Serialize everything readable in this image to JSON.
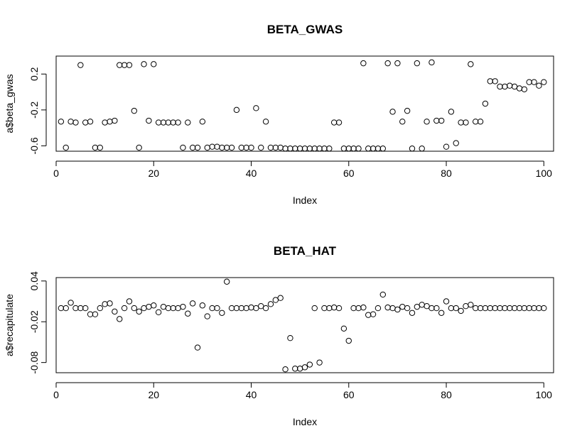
{
  "chart_data": [
    {
      "type": "scatter",
      "title": "BETA_GWAS",
      "xlabel": "Index",
      "ylabel": "a$beta_gwas",
      "xlim": [
        0,
        102
      ],
      "ylim": [
        -0.66,
        0.4
      ],
      "xticks": [
        0,
        20,
        40,
        60,
        80,
        100
      ],
      "yticks": [
        -0.6,
        -0.2,
        0.2
      ],
      "ytick_labels": [
        "-0.6",
        "-0.2",
        "0.2"
      ],
      "grid": false,
      "x": [
        1,
        2,
        3,
        4,
        5,
        6,
        7,
        8,
        9,
        10,
        11,
        12,
        13,
        14,
        15,
        16,
        17,
        18,
        19,
        20,
        21,
        22,
        23,
        24,
        25,
        26,
        27,
        28,
        29,
        30,
        31,
        32,
        33,
        34,
        35,
        36,
        37,
        38,
        39,
        40,
        41,
        42,
        43,
        44,
        45,
        46,
        47,
        48,
        49,
        50,
        51,
        52,
        53,
        54,
        55,
        56,
        57,
        58,
        59,
        60,
        61,
        62,
        63,
        64,
        65,
        66,
        67,
        68,
        69,
        70,
        71,
        72,
        73,
        74,
        75,
        76,
        77,
        78,
        79,
        80,
        81,
        82,
        83,
        84,
        85,
        86,
        87,
        88,
        89,
        90,
        91,
        92,
        93,
        94,
        95,
        96,
        97,
        98,
        99,
        100
      ],
      "y": [
        -0.33,
        -0.62,
        -0.33,
        -0.34,
        0.3,
        -0.34,
        -0.33,
        -0.62,
        -0.62,
        -0.34,
        -0.33,
        -0.32,
        0.3,
        0.3,
        0.3,
        -0.21,
        -0.62,
        0.31,
        -0.32,
        0.31,
        -0.34,
        -0.34,
        -0.34,
        -0.34,
        -0.34,
        -0.62,
        -0.34,
        -0.62,
        -0.62,
        -0.33,
        -0.62,
        -0.61,
        -0.61,
        -0.62,
        -0.62,
        -0.62,
        -0.2,
        -0.62,
        -0.62,
        -0.62,
        -0.18,
        -0.62,
        -0.33,
        -0.62,
        -0.62,
        -0.62,
        -0.63,
        -0.63,
        -0.63,
        -0.63,
        -0.63,
        -0.63,
        -0.63,
        -0.63,
        -0.63,
        -0.63,
        -0.34,
        -0.34,
        -0.63,
        -0.63,
        -0.63,
        -0.63,
        0.32,
        -0.63,
        -0.63,
        -0.63,
        -0.63,
        0.32,
        -0.22,
        0.32,
        -0.33,
        -0.21,
        -0.63,
        0.32,
        -0.63,
        -0.33,
        0.33,
        -0.32,
        -0.32,
        -0.61,
        -0.22,
        -0.57,
        -0.34,
        -0.34,
        0.31,
        -0.33,
        -0.33,
        -0.13,
        0.12,
        0.12,
        0.06,
        0.06,
        0.07,
        0.06,
        0.04,
        0.03,
        0.11,
        0.11,
        0.07,
        0.11
      ]
    },
    {
      "type": "scatter",
      "title": "BETA_HAT",
      "xlabel": "Index",
      "ylabel": "a$recapitulate",
      "xlim": [
        0,
        102
      ],
      "ylim": [
        -0.095,
        0.045
      ],
      "xticks": [
        0,
        20,
        40,
        60,
        80,
        100
      ],
      "yticks": [
        -0.08,
        -0.02,
        0.04
      ],
      "ytick_labels": [
        "-0.08",
        "-0.02",
        "0.04"
      ],
      "grid": false,
      "x": [
        1,
        2,
        3,
        4,
        5,
        6,
        7,
        8,
        9,
        10,
        11,
        12,
        13,
        14,
        15,
        16,
        17,
        18,
        19,
        20,
        21,
        22,
        23,
        24,
        25,
        26,
        27,
        28,
        29,
        30,
        31,
        32,
        33,
        34,
        35,
        36,
        37,
        38,
        39,
        40,
        41,
        42,
        43,
        44,
        45,
        46,
        47,
        48,
        49,
        50,
        51,
        52,
        53,
        54,
        55,
        56,
        57,
        58,
        59,
        60,
        61,
        62,
        63,
        64,
        65,
        66,
        67,
        68,
        69,
        70,
        71,
        72,
        73,
        74,
        75,
        76,
        77,
        78,
        79,
        80,
        81,
        82,
        83,
        84,
        85,
        86,
        87,
        88,
        89,
        90,
        91,
        92,
        93,
        94,
        95,
        96,
        97,
        98,
        99,
        100
      ],
      "y": [
        0,
        0,
        0.008,
        0,
        0,
        0,
        -0.009,
        -0.009,
        0,
        0.006,
        0.007,
        -0.005,
        -0.016,
        0,
        0.01,
        0,
        -0.005,
        0,
        0.002,
        0.004,
        -0.006,
        0.002,
        0,
        0,
        0,
        0.002,
        -0.008,
        0.007,
        -0.058,
        0.004,
        -0.012,
        0,
        0,
        -0.007,
        0.039,
        0,
        0,
        0,
        0,
        0.001,
        0,
        0.003,
        0,
        0.006,
        0.012,
        0.015,
        -0.09,
        -0.044,
        -0.089,
        -0.089,
        -0.087,
        -0.083,
        0,
        -0.08,
        0,
        0,
        0.001,
        0,
        -0.03,
        -0.048,
        0,
        0,
        0.001,
        -0.01,
        -0.009,
        0,
        0.02,
        0.001,
        0,
        -0.002,
        0.002,
        0,
        -0.007,
        0.002,
        0.005,
        0.003,
        0,
        0,
        -0.007,
        0.01,
        0,
        0,
        -0.004,
        0.003,
        0.005,
        0,
        0,
        0,
        0,
        0,
        0,
        0,
        0,
        0,
        0,
        0,
        0,
        0,
        0,
        0
      ]
    }
  ]
}
